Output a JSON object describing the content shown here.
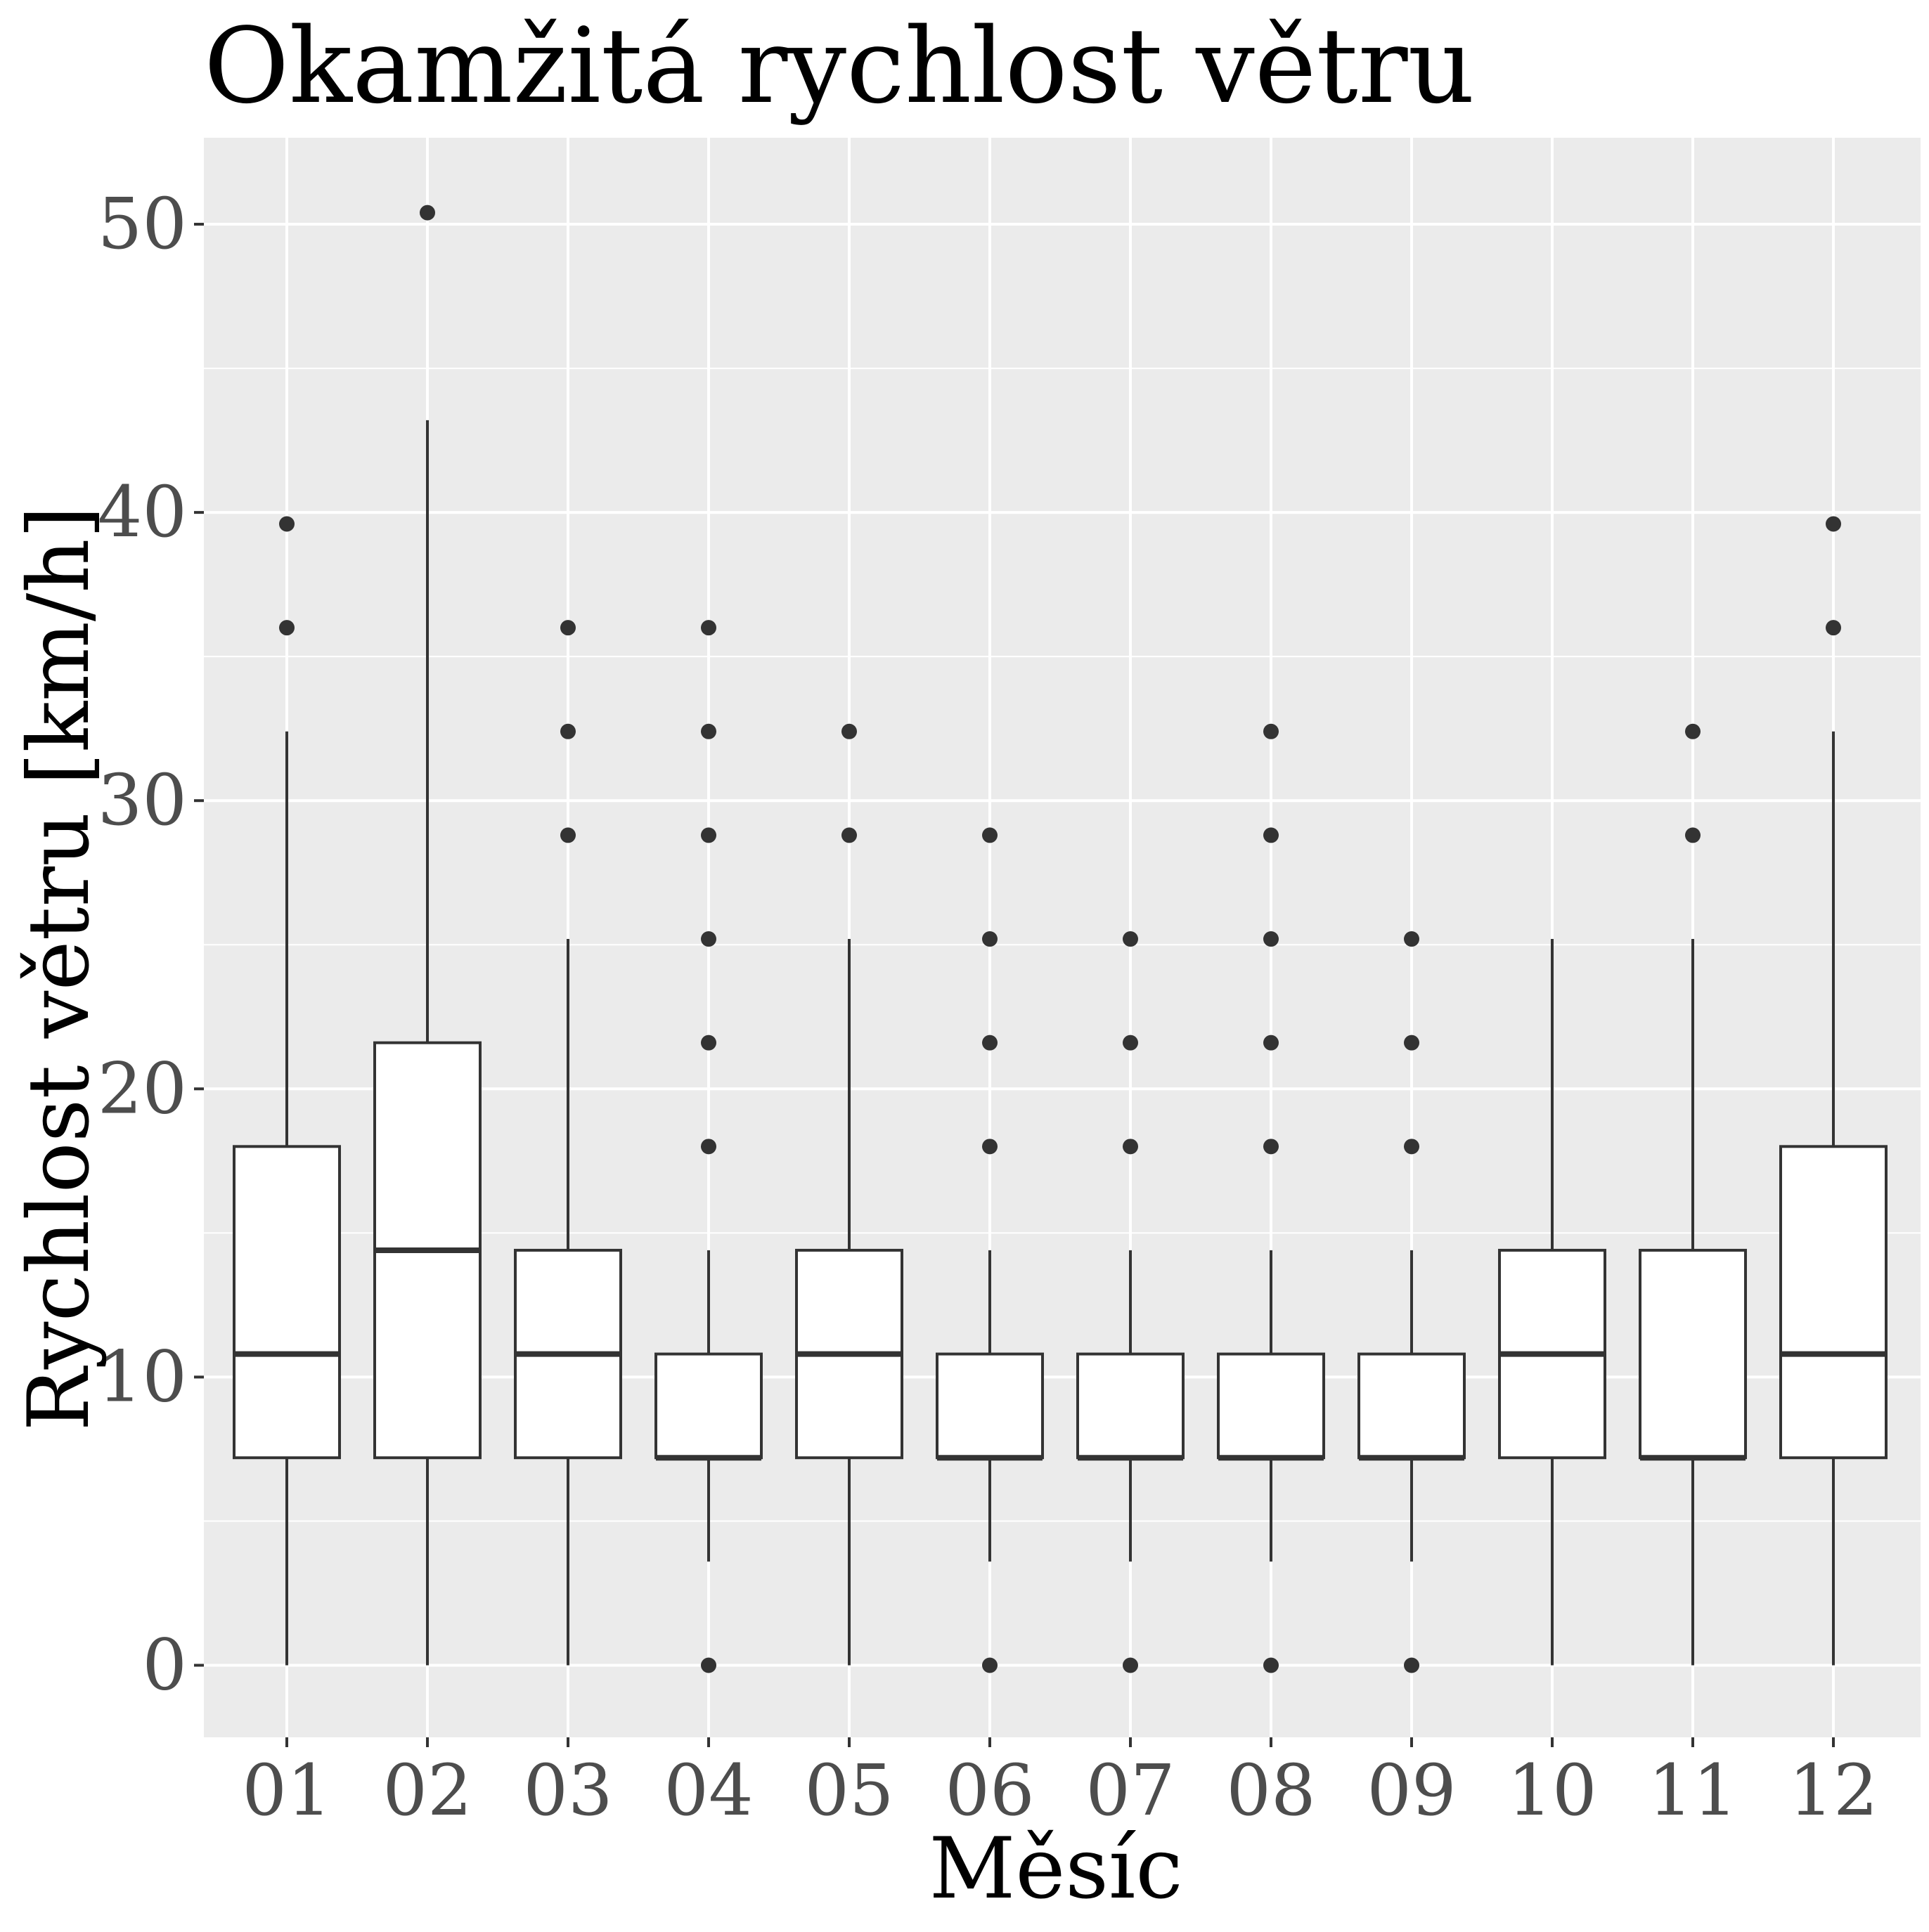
{
  "chart_data": {
    "type": "boxplot",
    "title": "Okamžitá rychlost větru",
    "xlabel": "Měsíc",
    "ylabel": "Rychlost větru [km/h]",
    "ylim": [
      -2.5,
      53
    ],
    "yticks": [
      0,
      10,
      20,
      30,
      40,
      50
    ],
    "y_minor_ticks": [
      5,
      15,
      25,
      35,
      45
    ],
    "grid": true,
    "colors": {
      "panel": "#ebebeb",
      "grid": "#ffffff",
      "box_fill": "#ffffff",
      "box_stroke": "#333333",
      "outlier": "#333333"
    },
    "categories": [
      "01",
      "02",
      "03",
      "04",
      "05",
      "06",
      "07",
      "08",
      "09",
      "10",
      "11",
      "12"
    ],
    "boxes": [
      {
        "month": "01",
        "whisker_low": 0,
        "q1": 7.2,
        "median": 10.8,
        "q3": 18.0,
        "whisker_high": 32.4,
        "outliers": [
          36.0,
          39.6
        ]
      },
      {
        "month": "02",
        "whisker_low": 0,
        "q1": 7.2,
        "median": 14.4,
        "q3": 21.6,
        "whisker_high": 43.2,
        "outliers": [
          50.4
        ]
      },
      {
        "month": "03",
        "whisker_low": 0,
        "q1": 7.2,
        "median": 10.8,
        "q3": 14.4,
        "whisker_high": 25.2,
        "outliers": [
          28.8,
          32.4,
          36.0
        ]
      },
      {
        "month": "04",
        "whisker_low": 3.6,
        "q1": 7.2,
        "median": 7.2,
        "q3": 10.8,
        "whisker_high": 14.4,
        "outliers": [
          0,
          18.0,
          21.6,
          25.2,
          28.8,
          32.4,
          36.0
        ]
      },
      {
        "month": "05",
        "whisker_low": 0,
        "q1": 7.2,
        "median": 10.8,
        "q3": 14.4,
        "whisker_high": 25.2,
        "outliers": [
          28.8,
          32.4
        ]
      },
      {
        "month": "06",
        "whisker_low": 3.6,
        "q1": 7.2,
        "median": 7.2,
        "q3": 10.8,
        "whisker_high": 14.4,
        "outliers": [
          0,
          18.0,
          21.6,
          25.2,
          28.8
        ]
      },
      {
        "month": "07",
        "whisker_low": 3.6,
        "q1": 7.2,
        "median": 7.2,
        "q3": 10.8,
        "whisker_high": 14.4,
        "outliers": [
          0,
          18.0,
          21.6,
          25.2
        ]
      },
      {
        "month": "08",
        "whisker_low": 3.6,
        "q1": 7.2,
        "median": 7.2,
        "q3": 10.8,
        "whisker_high": 14.4,
        "outliers": [
          0,
          18.0,
          21.6,
          25.2,
          28.8,
          32.4
        ]
      },
      {
        "month": "09",
        "whisker_low": 3.6,
        "q1": 7.2,
        "median": 7.2,
        "q3": 10.8,
        "whisker_high": 14.4,
        "outliers": [
          0,
          18.0,
          21.6,
          25.2
        ]
      },
      {
        "month": "10",
        "whisker_low": 0,
        "q1": 7.2,
        "median": 10.8,
        "q3": 14.4,
        "whisker_high": 25.2,
        "outliers": []
      },
      {
        "month": "11",
        "whisker_low": 0,
        "q1": 7.2,
        "median": 7.2,
        "q3": 14.4,
        "whisker_high": 25.2,
        "outliers": [
          28.8,
          32.4
        ]
      },
      {
        "month": "12",
        "whisker_low": 0,
        "q1": 7.2,
        "median": 10.8,
        "q3": 18.0,
        "whisker_high": 32.4,
        "outliers": [
          36.0,
          39.6
        ]
      }
    ]
  }
}
